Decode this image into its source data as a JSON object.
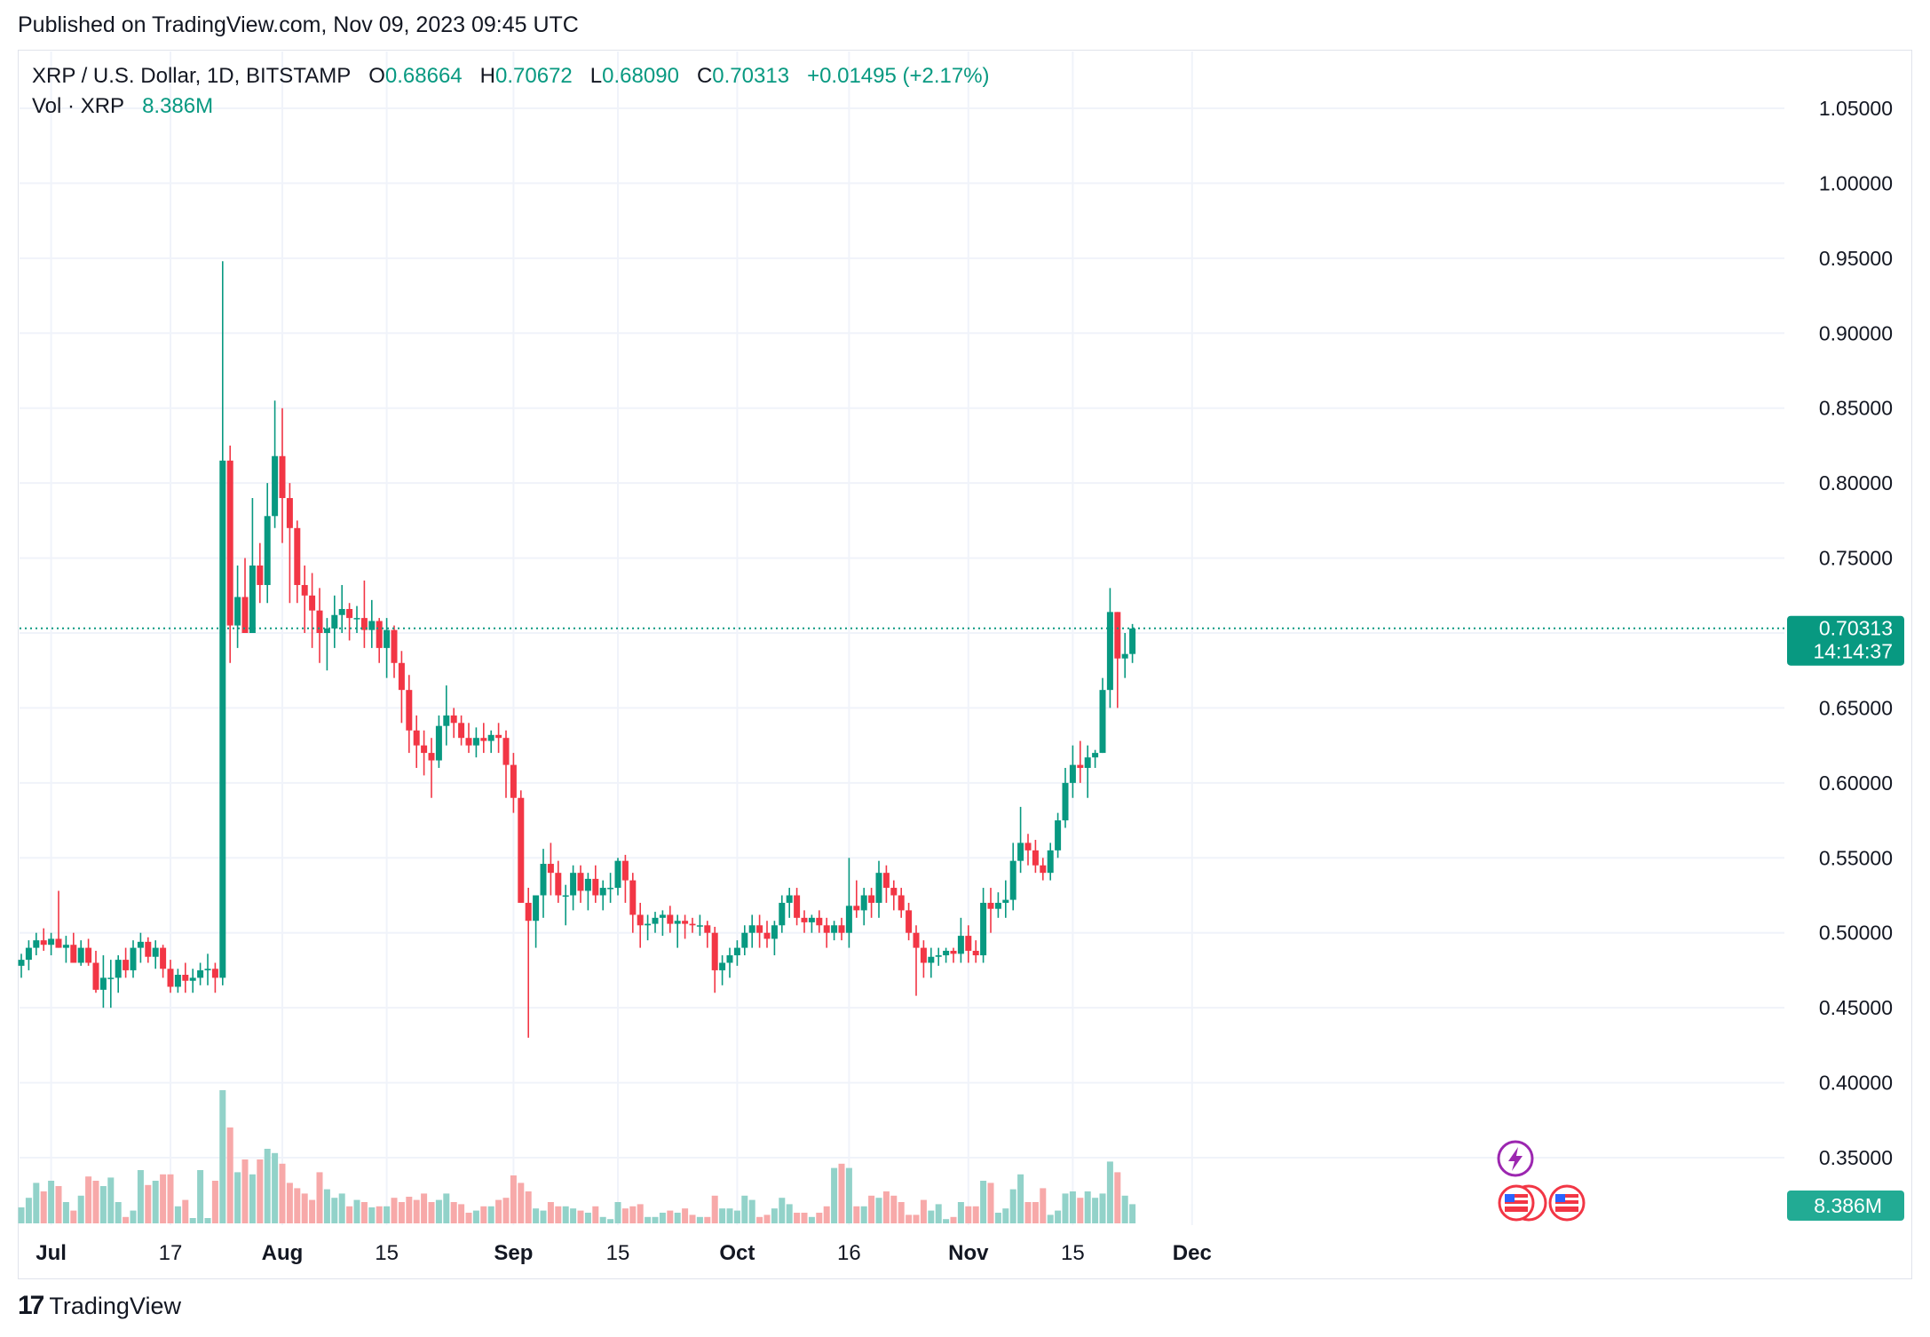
{
  "header": {
    "published": "Published on TradingView.com, Nov 09, 2023 09:45 UTC"
  },
  "legend": {
    "symbol": "XRP / U.S. Dollar, 1D, BITSTAMP",
    "o_label": "O",
    "o_value": "0.68664",
    "h_label": "H",
    "h_value": "0.70672",
    "l_label": "L",
    "l_value": "0.68090",
    "c_label": "C",
    "c_value": "0.70313",
    "change": "+0.01495 (+2.17%)",
    "vol_label": "Vol · XRP",
    "vol_value": "8.386M"
  },
  "price_tag": {
    "price": "0.70313",
    "countdown": "14:14:37"
  },
  "volume_tag": "8.386M",
  "footer": {
    "brand": "TradingView",
    "logo_glyph": "17"
  },
  "colors": {
    "up": "#089981",
    "down": "#f23645",
    "up_vol": "#92d2c9",
    "down_vol": "#f7a9a9",
    "grid": "#f0f3fa",
    "axis_text": "#131722"
  },
  "icons": [
    "tradingview-logo-icon",
    "lightning-icon",
    "us-flag-icon"
  ],
  "chart_data": {
    "type": "candlestick",
    "title": "XRP / U.S. Dollar, 1D, BITSTAMP",
    "x_ticks": [
      {
        "label": "Jul",
        "index": 4
      },
      {
        "label": "17",
        "index": 20
      },
      {
        "label": "Aug",
        "index": 35
      },
      {
        "label": "15",
        "index": 49
      },
      {
        "label": "Sep",
        "index": 66
      },
      {
        "label": "15",
        "index": 80
      },
      {
        "label": "Oct",
        "index": 96
      },
      {
        "label": "16",
        "index": 111
      },
      {
        "label": "Nov",
        "index": 127
      },
      {
        "label": "15",
        "index": 141
      },
      {
        "label": "Dec",
        "index": 157
      }
    ],
    "y_ticks": [
      "1.05000",
      "1.00000",
      "0.95000",
      "0.90000",
      "0.85000",
      "0.80000",
      "0.75000",
      "0.70000",
      "0.65000",
      "0.60000",
      "0.55000",
      "0.50000",
      "0.45000",
      "0.40000",
      "0.35000"
    ],
    "y_range": [
      0.3,
      1.1
    ],
    "last_price": 0.70313,
    "grid": true,
    "ohlcv": [
      [
        0.478,
        0.486,
        0.47,
        0.482,
        15
      ],
      [
        0.482,
        0.495,
        0.475,
        0.49,
        24
      ],
      [
        0.49,
        0.5,
        0.485,
        0.495,
        38
      ],
      [
        0.495,
        0.503,
        0.488,
        0.492,
        30
      ],
      [
        0.492,
        0.5,
        0.485,
        0.496,
        40
      ],
      [
        0.496,
        0.528,
        0.49,
        0.49,
        35
      ],
      [
        0.49,
        0.498,
        0.48,
        0.492,
        20
      ],
      [
        0.492,
        0.5,
        0.48,
        0.48,
        12
      ],
      [
        0.48,
        0.495,
        0.478,
        0.49,
        26
      ],
      [
        0.49,
        0.496,
        0.478,
        0.48,
        44
      ],
      [
        0.48,
        0.488,
        0.46,
        0.462,
        40
      ],
      [
        0.462,
        0.485,
        0.45,
        0.47,
        35
      ],
      [
        0.47,
        0.482,
        0.45,
        0.47,
        43
      ],
      [
        0.47,
        0.485,
        0.46,
        0.482,
        20
      ],
      [
        0.482,
        0.49,
        0.47,
        0.475,
        6
      ],
      [
        0.475,
        0.495,
        0.47,
        0.49,
        12
      ],
      [
        0.49,
        0.5,
        0.48,
        0.494,
        50
      ],
      [
        0.494,
        0.497,
        0.48,
        0.484,
        36
      ],
      [
        0.484,
        0.495,
        0.476,
        0.49,
        40
      ],
      [
        0.49,
        0.492,
        0.47,
        0.476,
        46
      ],
      [
        0.476,
        0.482,
        0.46,
        0.464,
        46
      ],
      [
        0.464,
        0.476,
        0.46,
        0.472,
        16
      ],
      [
        0.472,
        0.48,
        0.46,
        0.468,
        22
      ],
      [
        0.468,
        0.476,
        0.46,
        0.47,
        5
      ],
      [
        0.47,
        0.48,
        0.465,
        0.475,
        50
      ],
      [
        0.475,
        0.486,
        0.465,
        0.476,
        5
      ],
      [
        0.476,
        0.48,
        0.46,
        0.47,
        40
      ],
      [
        0.47,
        0.948,
        0.465,
        0.815,
        125
      ],
      [
        0.815,
        0.825,
        0.68,
        0.705,
        90
      ],
      [
        0.705,
        0.745,
        0.69,
        0.724,
        48
      ],
      [
        0.724,
        0.75,
        0.7,
        0.7,
        60
      ],
      [
        0.7,
        0.79,
        0.7,
        0.745,
        46
      ],
      [
        0.745,
        0.76,
        0.72,
        0.732,
        60
      ],
      [
        0.732,
        0.8,
        0.72,
        0.778,
        70
      ],
      [
        0.778,
        0.855,
        0.77,
        0.818,
        66
      ],
      [
        0.818,
        0.85,
        0.76,
        0.79,
        56
      ],
      [
        0.79,
        0.8,
        0.72,
        0.77,
        38
      ],
      [
        0.77,
        0.775,
        0.72,
        0.732,
        33
      ],
      [
        0.732,
        0.745,
        0.7,
        0.725,
        28
      ],
      [
        0.725,
        0.74,
        0.69,
        0.715,
        22
      ],
      [
        0.715,
        0.73,
        0.68,
        0.7,
        48
      ],
      [
        0.7,
        0.71,
        0.675,
        0.703,
        32
      ],
      [
        0.703,
        0.725,
        0.69,
        0.712,
        24
      ],
      [
        0.712,
        0.732,
        0.7,
        0.716,
        28
      ],
      [
        0.716,
        0.72,
        0.695,
        0.71,
        16
      ],
      [
        0.71,
        0.718,
        0.7,
        0.71,
        22
      ],
      [
        0.71,
        0.735,
        0.69,
        0.702,
        20
      ],
      [
        0.702,
        0.722,
        0.69,
        0.708,
        15
      ],
      [
        0.708,
        0.71,
        0.68,
        0.69,
        16
      ],
      [
        0.69,
        0.71,
        0.67,
        0.702,
        16
      ],
      [
        0.702,
        0.705,
        0.67,
        0.68,
        24
      ],
      [
        0.68,
        0.688,
        0.64,
        0.662,
        20
      ],
      [
        0.662,
        0.672,
        0.62,
        0.635,
        25
      ],
      [
        0.635,
        0.645,
        0.61,
        0.625,
        22
      ],
      [
        0.625,
        0.635,
        0.605,
        0.62,
        28
      ],
      [
        0.62,
        0.63,
        0.59,
        0.615,
        20
      ],
      [
        0.615,
        0.645,
        0.61,
        0.638,
        22
      ],
      [
        0.638,
        0.665,
        0.625,
        0.645,
        28
      ],
      [
        0.645,
        0.65,
        0.63,
        0.64,
        20
      ],
      [
        0.64,
        0.645,
        0.625,
        0.63,
        18
      ],
      [
        0.63,
        0.64,
        0.62,
        0.625,
        10
      ],
      [
        0.625,
        0.637,
        0.617,
        0.63,
        12
      ],
      [
        0.63,
        0.64,
        0.62,
        0.628,
        16
      ],
      [
        0.628,
        0.635,
        0.62,
        0.632,
        16
      ],
      [
        0.632,
        0.64,
        0.62,
        0.63,
        22
      ],
      [
        0.63,
        0.635,
        0.59,
        0.612,
        24
      ],
      [
        0.612,
        0.62,
        0.58,
        0.59,
        45
      ],
      [
        0.59,
        0.595,
        0.52,
        0.52,
        38
      ],
      [
        0.52,
        0.53,
        0.43,
        0.508,
        30
      ],
      [
        0.508,
        0.525,
        0.49,
        0.525,
        14
      ],
      [
        0.525,
        0.556,
        0.51,
        0.546,
        12
      ],
      [
        0.546,
        0.56,
        0.525,
        0.54,
        20
      ],
      [
        0.54,
        0.548,
        0.52,
        0.525,
        16
      ],
      [
        0.525,
        0.532,
        0.505,
        0.525,
        16
      ],
      [
        0.525,
        0.545,
        0.515,
        0.54,
        14
      ],
      [
        0.54,
        0.545,
        0.52,
        0.528,
        12
      ],
      [
        0.528,
        0.54,
        0.515,
        0.536,
        10
      ],
      [
        0.536,
        0.545,
        0.52,
        0.525,
        16
      ],
      [
        0.525,
        0.535,
        0.515,
        0.53,
        6
      ],
      [
        0.53,
        0.54,
        0.52,
        0.53,
        4
      ],
      [
        0.53,
        0.55,
        0.525,
        0.548,
        20
      ],
      [
        0.548,
        0.552,
        0.52,
        0.535,
        14
      ],
      [
        0.535,
        0.54,
        0.5,
        0.512,
        16
      ],
      [
        0.512,
        0.52,
        0.49,
        0.505,
        18
      ],
      [
        0.505,
        0.512,
        0.495,
        0.506,
        6
      ],
      [
        0.506,
        0.514,
        0.5,
        0.51,
        6
      ],
      [
        0.51,
        0.515,
        0.498,
        0.512,
        10
      ],
      [
        0.512,
        0.518,
        0.5,
        0.506,
        12
      ],
      [
        0.506,
        0.512,
        0.49,
        0.508,
        10
      ],
      [
        0.508,
        0.512,
        0.496,
        0.506,
        14
      ],
      [
        0.506,
        0.51,
        0.5,
        0.505,
        8
      ],
      [
        0.505,
        0.512,
        0.498,
        0.505,
        6
      ],
      [
        0.505,
        0.508,
        0.49,
        0.5,
        6
      ],
      [
        0.5,
        0.504,
        0.46,
        0.475,
        26
      ],
      [
        0.475,
        0.485,
        0.465,
        0.48,
        14
      ],
      [
        0.48,
        0.49,
        0.47,
        0.485,
        14
      ],
      [
        0.485,
        0.495,
        0.478,
        0.49,
        12
      ],
      [
        0.49,
        0.505,
        0.485,
        0.5,
        26
      ],
      [
        0.5,
        0.512,
        0.49,
        0.505,
        22
      ],
      [
        0.505,
        0.512,
        0.49,
        0.5,
        6
      ],
      [
        0.5,
        0.508,
        0.49,
        0.496,
        8
      ],
      [
        0.496,
        0.508,
        0.485,
        0.505,
        14
      ],
      [
        0.505,
        0.525,
        0.5,
        0.52,
        24
      ],
      [
        0.52,
        0.53,
        0.51,
        0.525,
        18
      ],
      [
        0.525,
        0.53,
        0.505,
        0.51,
        10
      ],
      [
        0.51,
        0.515,
        0.5,
        0.507,
        10
      ],
      [
        0.507,
        0.512,
        0.5,
        0.51,
        6
      ],
      [
        0.51,
        0.515,
        0.5,
        0.505,
        10
      ],
      [
        0.505,
        0.51,
        0.49,
        0.5,
        16
      ],
      [
        0.5,
        0.508,
        0.495,
        0.505,
        52
      ],
      [
        0.505,
        0.51,
        0.495,
        0.5,
        56
      ],
      [
        0.5,
        0.55,
        0.49,
        0.518,
        52
      ],
      [
        0.518,
        0.535,
        0.51,
        0.515,
        16
      ],
      [
        0.515,
        0.53,
        0.505,
        0.525,
        16
      ],
      [
        0.525,
        0.53,
        0.51,
        0.52,
        26
      ],
      [
        0.52,
        0.548,
        0.51,
        0.54,
        24
      ],
      [
        0.54,
        0.545,
        0.52,
        0.53,
        30
      ],
      [
        0.53,
        0.535,
        0.515,
        0.525,
        26
      ],
      [
        0.525,
        0.53,
        0.51,
        0.515,
        20
      ],
      [
        0.515,
        0.52,
        0.495,
        0.5,
        8
      ],
      [
        0.5,
        0.505,
        0.458,
        0.49,
        8
      ],
      [
        0.49,
        0.495,
        0.47,
        0.48,
        22
      ],
      [
        0.48,
        0.49,
        0.47,
        0.484,
        12
      ],
      [
        0.484,
        0.49,
        0.478,
        0.485,
        18
      ],
      [
        0.485,
        0.49,
        0.48,
        0.488,
        4
      ],
      [
        0.488,
        0.49,
        0.48,
        0.486,
        6
      ],
      [
        0.486,
        0.51,
        0.48,
        0.498,
        20
      ],
      [
        0.498,
        0.505,
        0.48,
        0.488,
        16
      ],
      [
        0.488,
        0.495,
        0.48,
        0.485,
        16
      ],
      [
        0.485,
        0.53,
        0.48,
        0.52,
        40
      ],
      [
        0.52,
        0.53,
        0.5,
        0.516,
        38
      ],
      [
        0.516,
        0.527,
        0.51,
        0.52,
        10
      ],
      [
        0.52,
        0.535,
        0.51,
        0.522,
        14
      ],
      [
        0.522,
        0.56,
        0.515,
        0.548,
        32
      ],
      [
        0.548,
        0.584,
        0.54,
        0.56,
        46
      ],
      [
        0.56,
        0.566,
        0.545,
        0.555,
        20
      ],
      [
        0.555,
        0.562,
        0.54,
        0.545,
        20
      ],
      [
        0.545,
        0.55,
        0.535,
        0.54,
        33
      ],
      [
        0.54,
        0.56,
        0.535,
        0.555,
        8
      ],
      [
        0.555,
        0.58,
        0.55,
        0.575,
        12
      ],
      [
        0.575,
        0.61,
        0.57,
        0.6,
        28
      ],
      [
        0.6,
        0.625,
        0.59,
        0.612,
        30
      ],
      [
        0.612,
        0.628,
        0.6,
        0.61,
        24
      ],
      [
        0.61,
        0.625,
        0.59,
        0.617,
        30
      ],
      [
        0.617,
        0.622,
        0.61,
        0.62,
        24
      ],
      [
        0.62,
        0.67,
        0.62,
        0.662,
        28
      ],
      [
        0.662,
        0.73,
        0.65,
        0.714,
        58
      ],
      [
        0.714,
        0.714,
        0.65,
        0.683,
        48
      ],
      [
        0.683,
        0.7,
        0.67,
        0.686,
        26
      ],
      [
        0.686,
        0.706,
        0.68,
        0.703,
        18
      ]
    ]
  }
}
